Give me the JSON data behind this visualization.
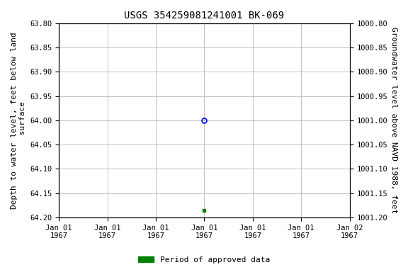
{
  "title": "USGS 354259081241001 BK-069",
  "left_ylabel": "Depth to water level, feet below land\n surface",
  "right_ylabel": "Groundwater level above NAVD 1988, feet",
  "ylim_left": [
    63.8,
    64.2
  ],
  "ylim_right": [
    1001.2,
    1000.8
  ],
  "yticks_left": [
    63.8,
    63.85,
    63.9,
    63.95,
    64.0,
    64.05,
    64.1,
    64.15,
    64.2
  ],
  "yticks_right": [
    1001.2,
    1001.15,
    1001.1,
    1001.05,
    1001.0,
    1000.95,
    1000.9,
    1000.85,
    1000.8
  ],
  "ytick_right_labels": [
    "1001.20",
    "1001.15",
    "1001.10",
    "1001.05",
    "1001.00",
    "1000.95",
    "1000.90",
    "1000.85",
    "1000.80"
  ],
  "xlim": [
    0,
    6
  ],
  "xtick_positions": [
    0,
    1,
    2,
    3,
    4,
    5,
    6
  ],
  "xtick_labels": [
    "Jan 01\n1967",
    "Jan 01\n1967",
    "Jan 01\n1967",
    "Jan 01\n1967",
    "Jan 01\n1967",
    "Jan 01\n1967",
    "Jan 02\n1967"
  ],
  "point_x_circle": 3,
  "point_y_circle": 64.0,
  "point_x_square": 3,
  "point_y_square": 64.185,
  "circle_color": "blue",
  "square_color": "green",
  "legend_label": "Period of approved data",
  "legend_color": "green",
  "bg_color": "white",
  "grid_color": "#c0c0c0",
  "font_family": "monospace",
  "title_fontsize": 10,
  "label_fontsize": 8,
  "tick_fontsize": 7.5
}
